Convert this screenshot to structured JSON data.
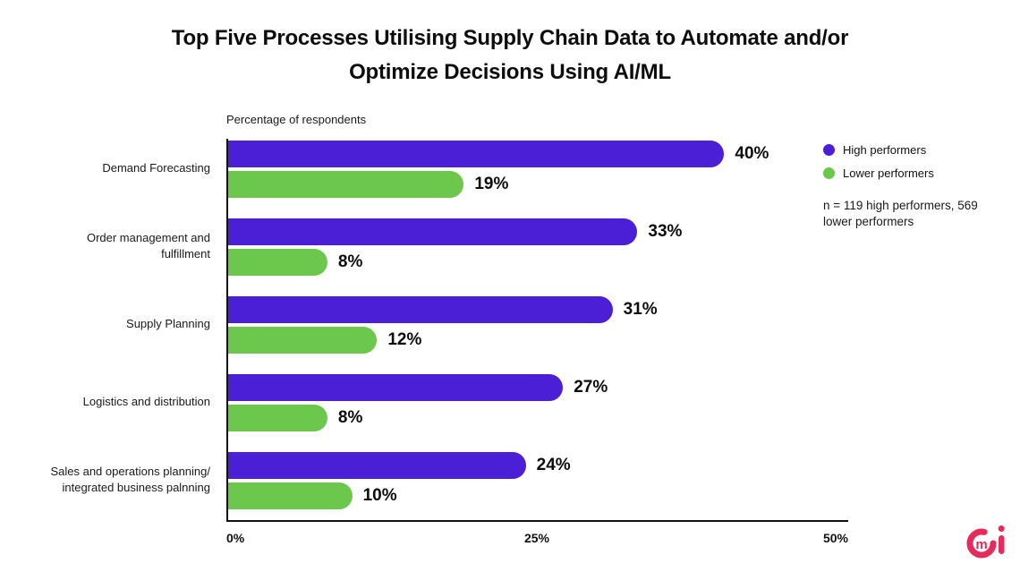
{
  "title": {
    "text": "Top Five Processes Utilising Supply Chain Data to Automate and/or\nOptimize Decisions Using AI/ML"
  },
  "axis_title": "Percentage of respondents",
  "legend": {
    "items": [
      {
        "label": "High performers",
        "color": "#4B1FD6"
      },
      {
        "label": "Lower performers",
        "color": "#6BC84D"
      }
    ],
    "note": "n = 119 high performers, 569\nlower performers"
  },
  "chart_data": {
    "type": "bar",
    "orientation": "horizontal",
    "title": "Top Five Processes Utilising Supply Chain Data to Automate and/or Optimize Decisions Using AI/ML",
    "xlabel": "Percentage of respondents",
    "xlim": [
      0,
      50
    ],
    "x_ticks": [
      "0%",
      "25%",
      "50%"
    ],
    "grid": false,
    "legend_position": "top-right",
    "categories": [
      "Demand Forecasting",
      "Order management and\nfulfillment",
      "Supply Planning",
      "Logistics and distribution",
      "Sales and operations planning/\nintegrated business palnning"
    ],
    "series": [
      {
        "name": "High performers",
        "color": "#4B1FD6",
        "values": [
          40,
          33,
          31,
          27,
          24
        ],
        "labels": [
          "40%",
          "33%",
          "31%",
          "27%",
          "24%"
        ]
      },
      {
        "name": "Lower performers",
        "color": "#6BC84D",
        "values": [
          19,
          8,
          12,
          8,
          10
        ],
        "labels": [
          "19%",
          "8%",
          "12%",
          "8%",
          "10%"
        ]
      }
    ]
  },
  "logo": {
    "letter_inside": "m",
    "letter_right": "i",
    "color": "#E72A5C"
  }
}
